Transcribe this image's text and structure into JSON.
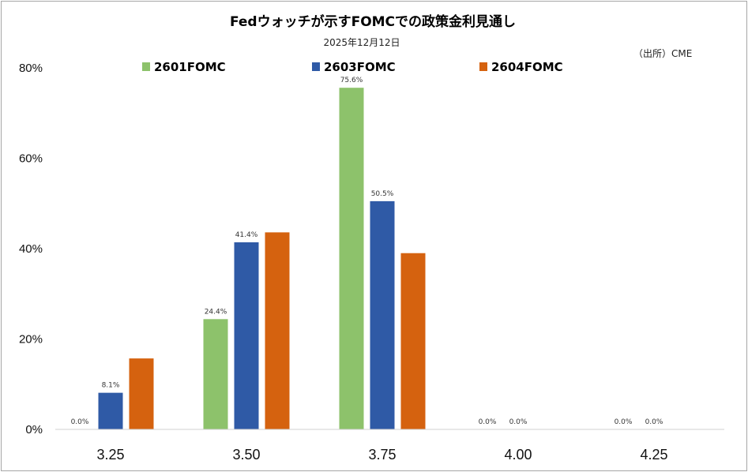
{
  "chart_data": {
    "type": "bar",
    "title": "Fedウォッチが示すFOMCでの政策金利見通し",
    "subtitle": "2025年12月12日",
    "source": "（出所）CME",
    "categories": [
      "3.25",
      "3.50",
      "3.75",
      "4.00",
      "4.25"
    ],
    "series": [
      {
        "name": "2601FOMC",
        "color": "#8dc26b",
        "values": [
          0.0,
          24.4,
          75.6,
          0.0,
          0.0
        ],
        "labels": [
          "0.0%",
          "24.4%",
          "75.6%",
          "0.0%",
          "0.0%"
        ]
      },
      {
        "name": "2603FOMC",
        "color": "#2f5aa6",
        "values": [
          8.1,
          41.4,
          50.5,
          0.0,
          0.0
        ],
        "labels": [
          "8.1%",
          "41.4%",
          "50.5%",
          "0.0%",
          "0.0%"
        ]
      },
      {
        "name": "2604FOMC",
        "color": "#d5620f",
        "values": [
          15.7,
          43.6,
          39.0,
          0.0,
          0.0
        ],
        "labels": [
          "",
          "",
          "",
          "",
          ""
        ]
      }
    ],
    "ylim": [
      0,
      80
    ],
    "yticks": [
      0,
      20,
      40,
      60,
      80
    ],
    "ytick_labels": [
      "0%",
      "20%",
      "40%",
      "60%",
      "80%"
    ],
    "grid": false,
    "legend_position": "top"
  }
}
